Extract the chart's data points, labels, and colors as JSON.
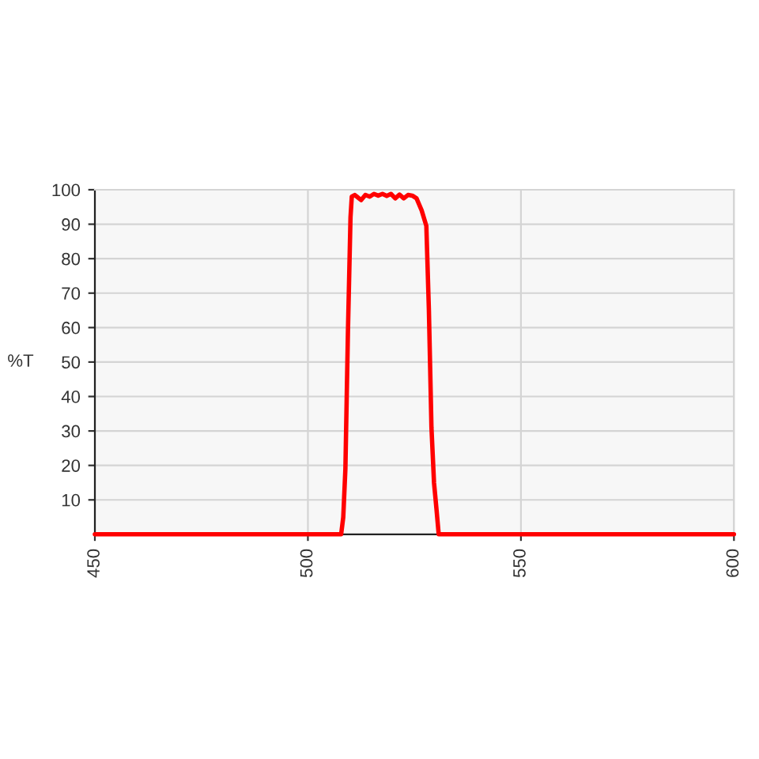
{
  "chart_data": {
    "type": "line",
    "ylabel": "%T",
    "x": [
      450,
      480,
      505,
      507.8,
      508.3,
      508.8,
      509.4,
      510.0,
      510.3,
      511.0,
      511.5,
      512.5,
      513.5,
      514.5,
      515.5,
      516.5,
      517.5,
      518.5,
      519.5,
      520.5,
      521.5,
      522.5,
      523.5,
      524.5,
      525.5,
      526.7,
      527.8,
      528.4,
      529.0,
      529.6,
      530.2,
      530.7,
      535,
      570,
      600
    ],
    "series": [
      {
        "color": "#ff0000",
        "values": [
          0,
          0,
          0,
          0,
          5,
          19,
          59,
          92,
          98,
          98.5,
          98,
          97,
          98.5,
          98,
          98.8,
          98.3,
          98.8,
          98.2,
          98.8,
          97.5,
          98.6,
          97.5,
          98.5,
          98.3,
          97.5,
          94,
          89.5,
          65,
          31,
          15,
          7,
          0,
          0,
          0,
          0
        ]
      }
    ],
    "xlim": [
      450,
      600
    ],
    "xticks": [
      450,
      500,
      550,
      600
    ],
    "ylim": [
      0,
      100
    ],
    "yticks": [
      10,
      20,
      30,
      40,
      50,
      60,
      70,
      80,
      90,
      100
    ],
    "grid": true,
    "line_style": "solid",
    "marker": "none"
  }
}
